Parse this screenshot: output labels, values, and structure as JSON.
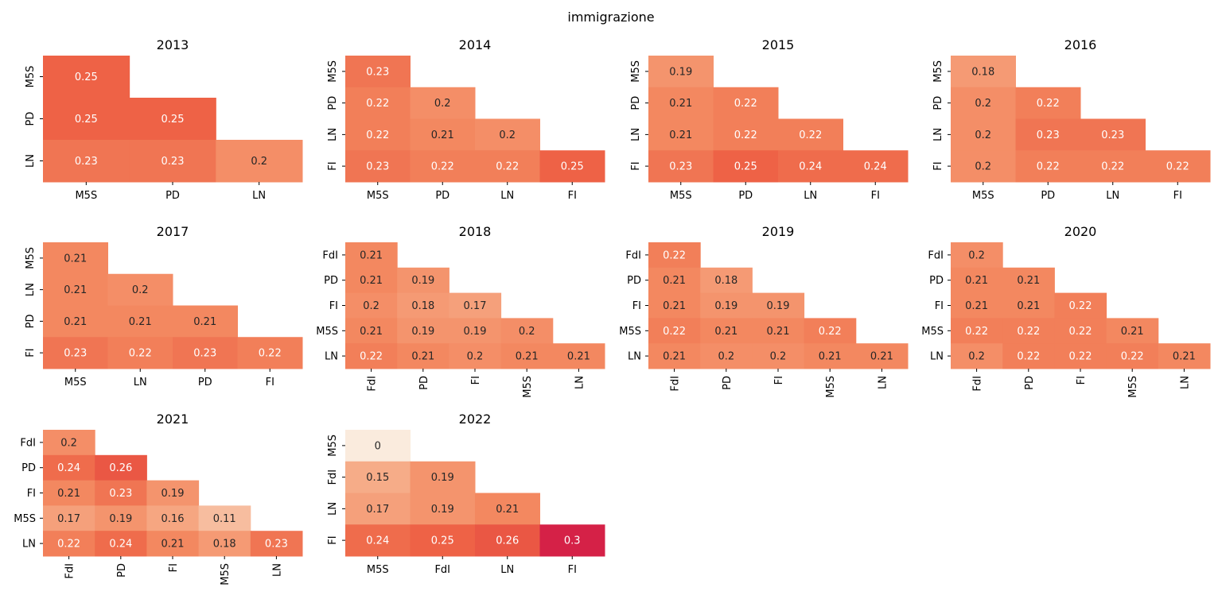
{
  "title": "immigrazione",
  "chart_data": [
    {
      "type": "heatmap",
      "title": "2013",
      "labels": [
        "M5S",
        "PD",
        "LN"
      ],
      "values": [
        [
          0.25
        ],
        [
          0.25,
          0.25
        ],
        [
          0.23,
          0.23,
          0.2
        ]
      ]
    },
    {
      "type": "heatmap",
      "title": "2014",
      "labels": [
        "M5S",
        "PD",
        "LN",
        "FI"
      ],
      "values": [
        [
          0.23
        ],
        [
          0.22,
          0.2
        ],
        [
          0.22,
          0.21,
          0.2
        ],
        [
          0.23,
          0.22,
          0.22,
          0.25
        ]
      ]
    },
    {
      "type": "heatmap",
      "title": "2015",
      "labels": [
        "M5S",
        "PD",
        "LN",
        "FI"
      ],
      "values": [
        [
          0.19
        ],
        [
          0.21,
          0.22
        ],
        [
          0.21,
          0.22,
          0.22
        ],
        [
          0.23,
          0.25,
          0.24,
          0.24
        ]
      ]
    },
    {
      "type": "heatmap",
      "title": "2016",
      "labels": [
        "M5S",
        "PD",
        "LN",
        "FI"
      ],
      "values": [
        [
          0.18
        ],
        [
          0.2,
          0.22
        ],
        [
          0.2,
          0.23,
          0.23
        ],
        [
          0.2,
          0.22,
          0.22,
          0.22
        ]
      ]
    },
    {
      "type": "heatmap",
      "title": "2017",
      "labels": [
        "M5S",
        "LN",
        "PD",
        "FI"
      ],
      "values": [
        [
          0.21
        ],
        [
          0.21,
          0.2
        ],
        [
          0.21,
          0.21,
          0.21
        ],
        [
          0.23,
          0.22,
          0.23,
          0.22
        ]
      ]
    },
    {
      "type": "heatmap",
      "title": "2018",
      "labels": [
        "FdI",
        "PD",
        "FI",
        "M5S",
        "LN"
      ],
      "values": [
        [
          0.21
        ],
        [
          0.21,
          0.19
        ],
        [
          0.2,
          0.18,
          0.17
        ],
        [
          0.21,
          0.19,
          0.19,
          0.2
        ],
        [
          0.22,
          0.21,
          0.2,
          0.21,
          0.21
        ]
      ]
    },
    {
      "type": "heatmap",
      "title": "2019",
      "labels": [
        "FdI",
        "PD",
        "FI",
        "M5S",
        "LN"
      ],
      "values": [
        [
          0.22
        ],
        [
          0.21,
          0.18
        ],
        [
          0.21,
          0.19,
          0.19
        ],
        [
          0.22,
          0.21,
          0.21,
          0.22
        ],
        [
          0.21,
          0.2,
          0.2,
          0.21,
          0.21
        ]
      ]
    },
    {
      "type": "heatmap",
      "title": "2020",
      "labels": [
        "FdI",
        "PD",
        "FI",
        "M5S",
        "LN"
      ],
      "values": [
        [
          0.2
        ],
        [
          0.21,
          0.21
        ],
        [
          0.21,
          0.21,
          0.22
        ],
        [
          0.22,
          0.22,
          0.22,
          0.21
        ],
        [
          0.2,
          0.22,
          0.22,
          0.22,
          0.21
        ]
      ]
    },
    {
      "type": "heatmap",
      "title": "2021",
      "labels": [
        "FdI",
        "PD",
        "FI",
        "M5S",
        "LN"
      ],
      "values": [
        [
          0.2
        ],
        [
          0.24,
          0.26
        ],
        [
          0.21,
          0.23,
          0.19
        ],
        [
          0.17,
          0.19,
          0.16,
          0.11
        ],
        [
          0.22,
          0.24,
          0.21,
          0.18,
          0.23
        ]
      ]
    },
    {
      "type": "heatmap",
      "title": "2022",
      "labels": [
        "M5S",
        "FdI",
        "LN",
        "FI"
      ],
      "values": [
        [
          0
        ],
        [
          0.15,
          0.19
        ],
        [
          0.17,
          0.19,
          0.21
        ],
        [
          0.24,
          0.25,
          0.26,
          0.3
        ]
      ]
    }
  ]
}
